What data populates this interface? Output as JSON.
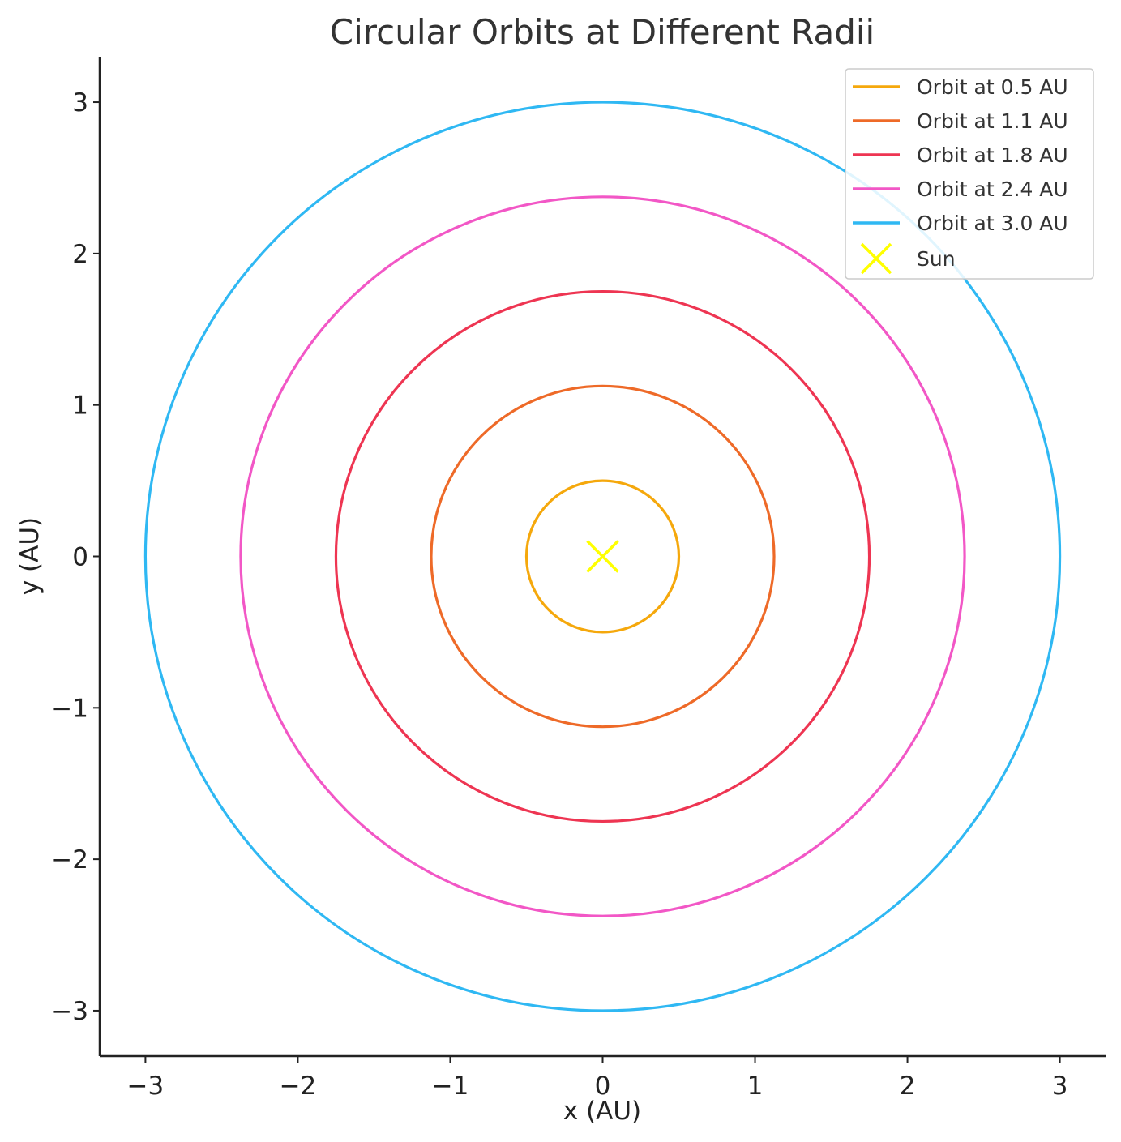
{
  "chart_data": {
    "type": "line",
    "title": "Circular Orbits at Different Radii",
    "xlabel": "x (AU)",
    "ylabel": "y (AU)",
    "xlim": [
      -3.3,
      3.3
    ],
    "ylim": [
      -3.3,
      3.3
    ],
    "xticks": [
      -3,
      -2,
      -1,
      0,
      1,
      2,
      3
    ],
    "yticks": [
      -3,
      -2,
      -1,
      0,
      1,
      2,
      3
    ],
    "xtick_labels": [
      "−3",
      "−2",
      "−1",
      "0",
      "1",
      "2",
      "3"
    ],
    "ytick_labels": [
      "−3",
      "−2",
      "−1",
      "0",
      "1",
      "2",
      "3"
    ],
    "grid": false,
    "legend_position": "top-right",
    "series": [
      {
        "name": "Orbit at 0.5 AU",
        "radius": 0.5,
        "color": "#f5a80c"
      },
      {
        "name": "Orbit at 1.1 AU",
        "radius": 1.125,
        "color": "#ee6a28"
      },
      {
        "name": "Orbit at 1.8 AU",
        "radius": 1.75,
        "color": "#ee3552"
      },
      {
        "name": "Orbit at 2.4 AU",
        "radius": 2.375,
        "color": "#f257c6"
      },
      {
        "name": "Orbit at 3.0 AU",
        "radius": 3.0,
        "color": "#2fb8f3"
      }
    ],
    "sun": {
      "name": "Sun",
      "x": 0,
      "y": 0,
      "marker": "x",
      "color": "#ffff00"
    }
  }
}
